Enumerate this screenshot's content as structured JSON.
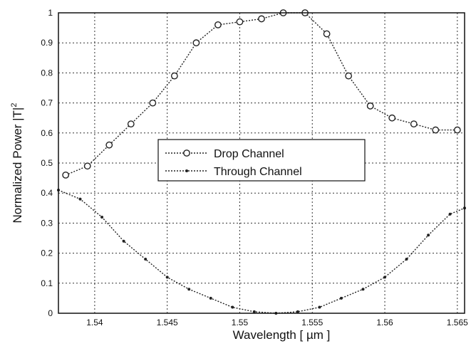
{
  "chart_data": {
    "type": "line",
    "xlabel": "Wavelength [ µm ]",
    "ylabel": "Normalized Power |T|",
    "ylabel_superscript": "2",
    "xlim": [
      1.5375,
      1.5655
    ],
    "ylim": [
      0,
      1
    ],
    "x_ticks": [
      1.54,
      1.545,
      1.55,
      1.555,
      1.56,
      1.565
    ],
    "x_tick_labels": [
      "1.54",
      "1.545",
      "1.55",
      "1.555",
      "1.56",
      "1.565"
    ],
    "y_ticks": [
      0,
      0.1,
      0.2,
      0.3,
      0.4,
      0.5,
      0.6,
      0.7,
      0.8,
      0.9,
      1
    ],
    "y_tick_labels": [
      "0",
      "0.1",
      "0.2",
      "0.3",
      "0.4",
      "0.5",
      "0.6",
      "0.7",
      "0.8",
      "0.9",
      "1"
    ],
    "grid": true,
    "legend_position": "center",
    "series": [
      {
        "name": "Drop Channel",
        "marker": "circle",
        "x": [
          1.538,
          1.5395,
          1.541,
          1.5425,
          1.544,
          1.5455,
          1.547,
          1.5485,
          1.55,
          1.5515,
          1.553,
          1.5545,
          1.556,
          1.5575,
          1.559,
          1.5605,
          1.562,
          1.5635,
          1.565
        ],
        "y": [
          0.46,
          0.49,
          0.56,
          0.63,
          0.7,
          0.79,
          0.9,
          0.96,
          0.97,
          0.98,
          1.0,
          1.0,
          0.93,
          0.79,
          0.69,
          0.65,
          0.63,
          0.61,
          0.61
        ]
      },
      {
        "name": "Through Channel",
        "marker": "dot",
        "x": [
          1.5375,
          1.539,
          1.5405,
          1.542,
          1.5435,
          1.545,
          1.5465,
          1.548,
          1.5495,
          1.551,
          1.5525,
          1.554,
          1.5555,
          1.557,
          1.5585,
          1.56,
          1.5615,
          1.563,
          1.5645,
          1.5655
        ],
        "y": [
          0.41,
          0.38,
          0.32,
          0.24,
          0.18,
          0.12,
          0.08,
          0.05,
          0.02,
          0.005,
          0.0,
          0.005,
          0.02,
          0.05,
          0.08,
          0.12,
          0.18,
          0.26,
          0.33,
          0.35
        ]
      }
    ]
  }
}
